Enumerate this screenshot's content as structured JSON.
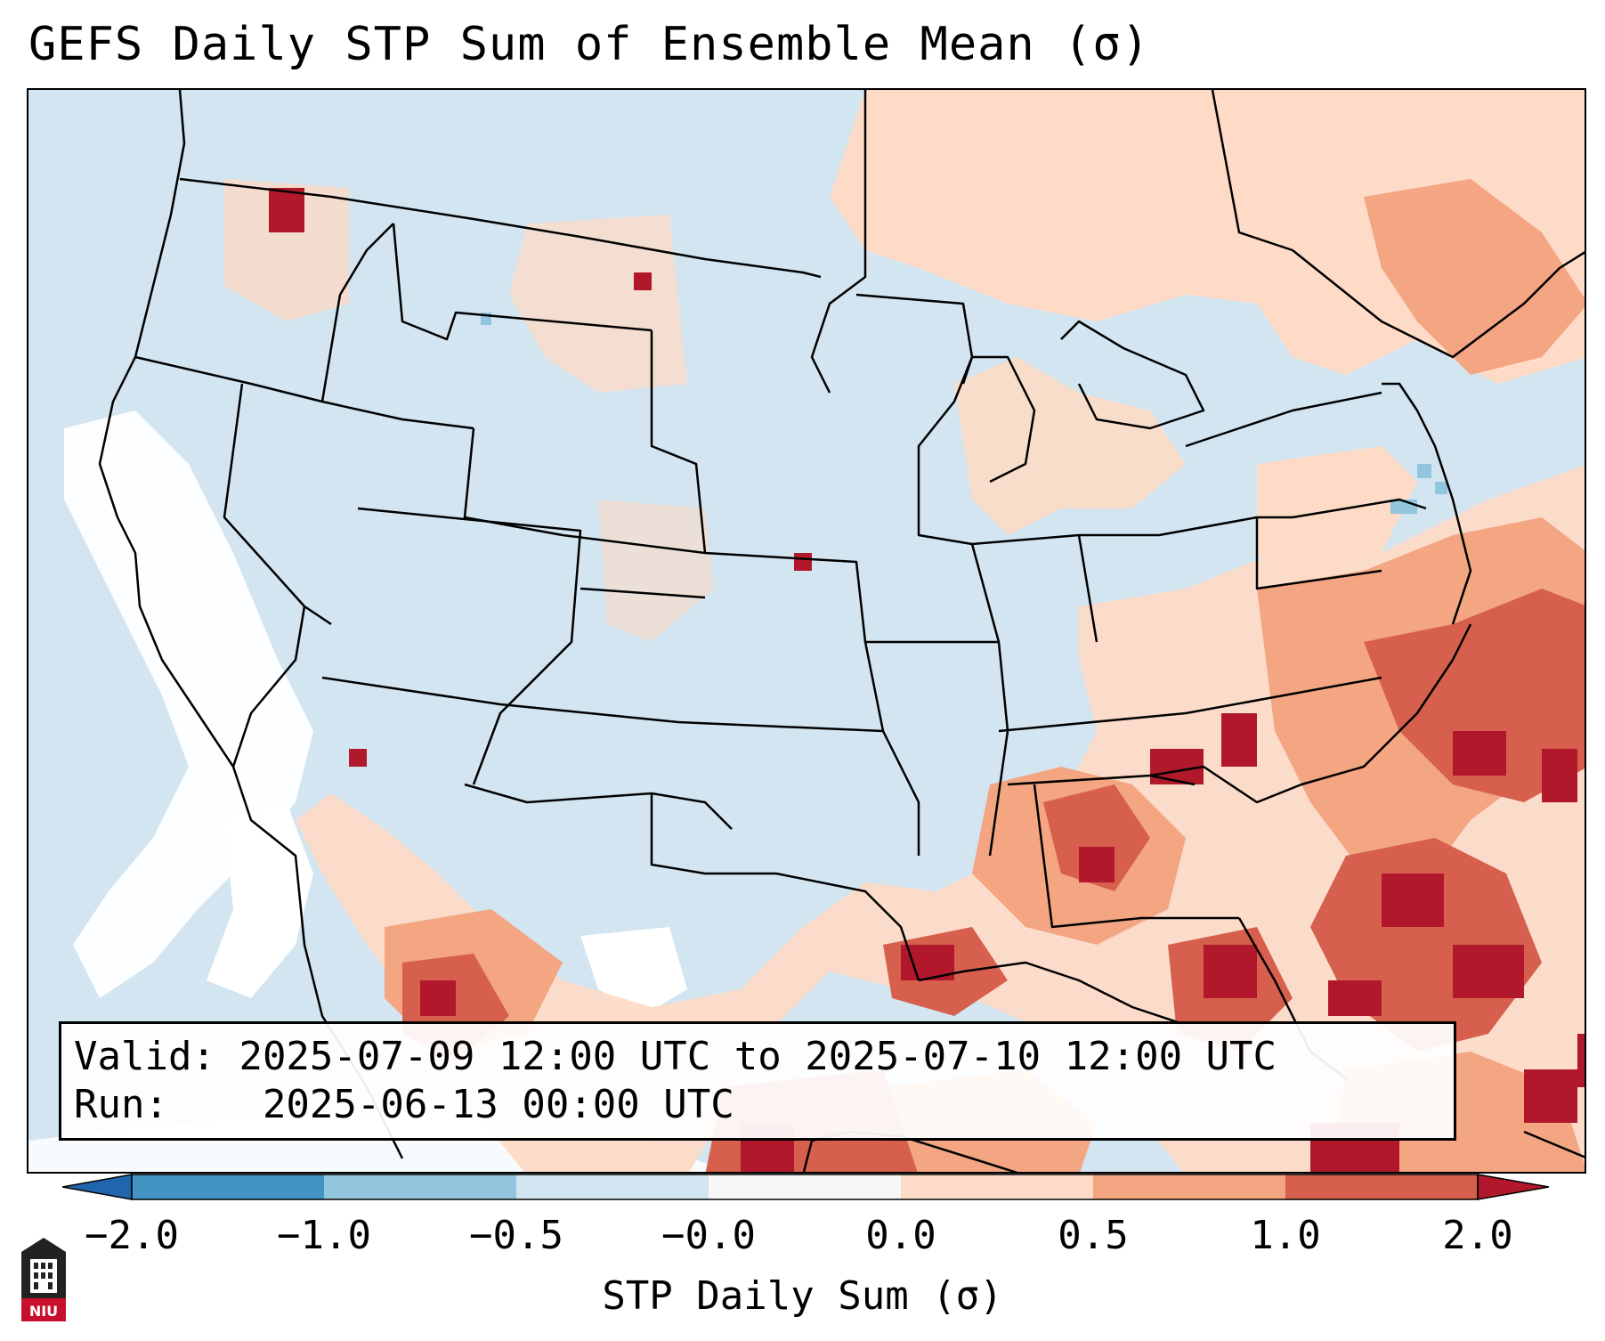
{
  "title": "GEFS Daily STP Sum of Ensemble Mean (σ)",
  "info_box": {
    "valid_label": "Valid:",
    "valid_value": "2025-07-09 12:00 UTC to 2025-07-10 12:00 UTC",
    "run_label": "Run:",
    "run_value": "2025-06-13 00:00 UTC"
  },
  "colorbar": {
    "label": "STP Daily Sum (σ)",
    "ticks": [
      "−2.0",
      "−1.0",
      "−0.5",
      "−0.0",
      "0.0",
      "0.5",
      "1.0",
      "2.0"
    ],
    "bins": [
      {
        "range": "-2.0 to -1.0",
        "color": "#4393c3"
      },
      {
        "range": "-1.0 to -0.5",
        "color": "#92c5de"
      },
      {
        "range": "-0.5 to -0.0",
        "color": "#d1e5f0"
      },
      {
        "range": "-0.0 to 0.0",
        "color": "#f7f7f7"
      },
      {
        "range": "0.0 to 0.5",
        "color": "#fddbc7"
      },
      {
        "range": "0.5 to 1.0",
        "color": "#f4a582"
      },
      {
        "range": "1.0 to 2.0",
        "color": "#d6604d"
      }
    ],
    "under_color": "#2166ac",
    "over_color": "#b2182b"
  },
  "logo_text": "NIU",
  "colors": {
    "background_field": "#d2e5f0",
    "neutral": "#ffffff",
    "light_pos": "#fddbc7",
    "med_pos": "#f4a582",
    "strong_pos": "#d6604d",
    "max_pos": "#b2182b",
    "light_neg": "#92c5de"
  }
}
